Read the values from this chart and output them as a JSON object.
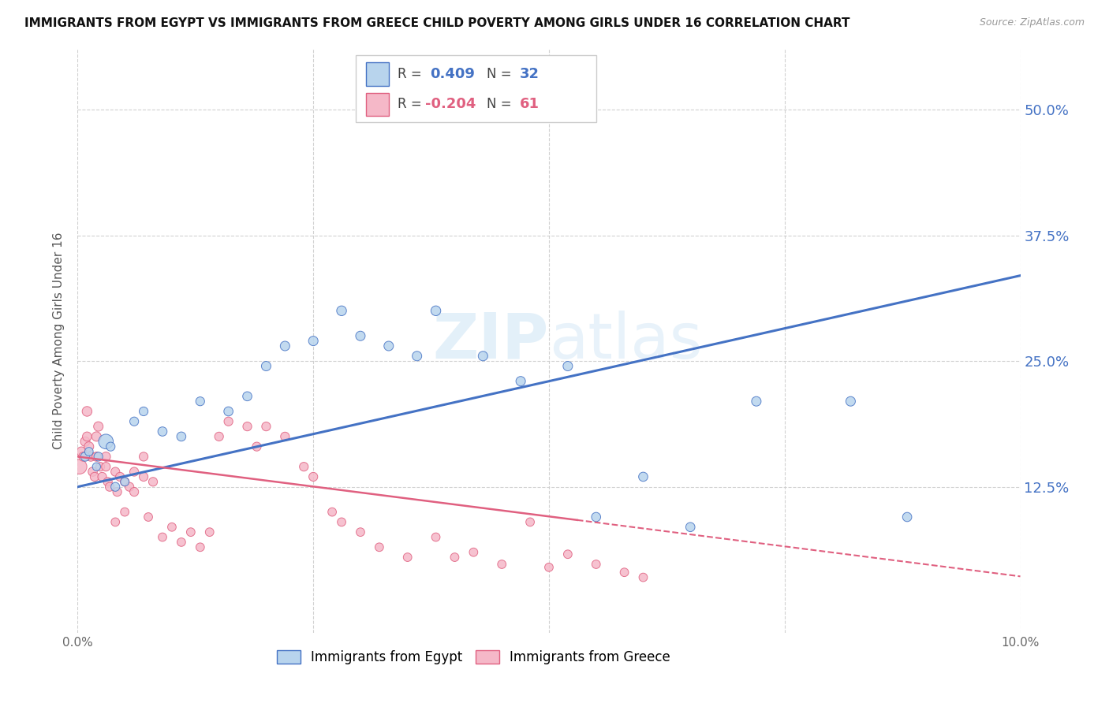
{
  "title": "IMMIGRANTS FROM EGYPT VS IMMIGRANTS FROM GREECE CHILD POVERTY AMONG GIRLS UNDER 16 CORRELATION CHART",
  "source": "Source: ZipAtlas.com",
  "ylabel": "Child Poverty Among Girls Under 16",
  "r_egypt": 0.409,
  "n_egypt": 32,
  "r_greece": -0.204,
  "n_greece": 61,
  "egypt_color": "#b8d4ed",
  "greece_color": "#f5b8c8",
  "egypt_line_color": "#4472c4",
  "greece_line_color": "#e06080",
  "background_color": "#ffffff",
  "ytick_labels": [
    "12.5%",
    "25.0%",
    "37.5%",
    "50.0%"
  ],
  "ytick_values": [
    0.125,
    0.25,
    0.375,
    0.5
  ],
  "xlim": [
    0.0,
    0.1
  ],
  "ylim": [
    -0.02,
    0.56
  ],
  "egypt_line_x0": 0.0,
  "egypt_line_y0": 0.125,
  "egypt_line_x1": 0.1,
  "egypt_line_y1": 0.335,
  "greece_line_solid_x0": 0.0,
  "greece_line_solid_y0": 0.155,
  "greece_line_solid_x1": 0.053,
  "greece_line_solid_y1": 0.092,
  "greece_line_dash_x0": 0.053,
  "greece_line_dash_y0": 0.092,
  "greece_line_dash_x1": 0.1,
  "greece_line_dash_y1": 0.036,
  "egypt_x": [
    0.0008,
    0.0012,
    0.002,
    0.0022,
    0.003,
    0.0035,
    0.004,
    0.005,
    0.006,
    0.007,
    0.009,
    0.011,
    0.013,
    0.016,
    0.018,
    0.02,
    0.022,
    0.025,
    0.028,
    0.03,
    0.033,
    0.036,
    0.038,
    0.043,
    0.047,
    0.052,
    0.055,
    0.06,
    0.065,
    0.072,
    0.082,
    0.088
  ],
  "egypt_y": [
    0.155,
    0.16,
    0.145,
    0.155,
    0.17,
    0.165,
    0.125,
    0.13,
    0.19,
    0.2,
    0.18,
    0.175,
    0.21,
    0.2,
    0.215,
    0.245,
    0.265,
    0.27,
    0.3,
    0.275,
    0.265,
    0.255,
    0.3,
    0.255,
    0.23,
    0.245,
    0.095,
    0.135,
    0.085,
    0.21,
    0.21,
    0.095
  ],
  "egypt_size": [
    70,
    60,
    55,
    65,
    180,
    65,
    65,
    60,
    65,
    65,
    70,
    70,
    65,
    70,
    70,
    75,
    75,
    75,
    80,
    75,
    75,
    75,
    80,
    75,
    75,
    75,
    70,
    70,
    70,
    75,
    75,
    70
  ],
  "greece_x": [
    0.0002,
    0.0004,
    0.0006,
    0.0008,
    0.001,
    0.001,
    0.0012,
    0.0014,
    0.0016,
    0.0018,
    0.002,
    0.002,
    0.0022,
    0.0024,
    0.0026,
    0.003,
    0.003,
    0.0032,
    0.0034,
    0.004,
    0.004,
    0.0042,
    0.0045,
    0.005,
    0.005,
    0.0055,
    0.006,
    0.006,
    0.007,
    0.007,
    0.0075,
    0.008,
    0.009,
    0.01,
    0.011,
    0.012,
    0.013,
    0.014,
    0.015,
    0.016,
    0.018,
    0.019,
    0.02,
    0.022,
    0.024,
    0.025,
    0.027,
    0.028,
    0.03,
    0.032,
    0.035,
    0.038,
    0.04,
    0.042,
    0.045,
    0.048,
    0.05,
    0.052,
    0.055,
    0.058,
    0.06
  ],
  "greece_y": [
    0.145,
    0.16,
    0.155,
    0.17,
    0.2,
    0.175,
    0.165,
    0.155,
    0.14,
    0.135,
    0.175,
    0.155,
    0.185,
    0.145,
    0.135,
    0.155,
    0.145,
    0.13,
    0.125,
    0.14,
    0.09,
    0.12,
    0.135,
    0.13,
    0.1,
    0.125,
    0.12,
    0.14,
    0.135,
    0.155,
    0.095,
    0.13,
    0.075,
    0.085,
    0.07,
    0.08,
    0.065,
    0.08,
    0.175,
    0.19,
    0.185,
    0.165,
    0.185,
    0.175,
    0.145,
    0.135,
    0.1,
    0.09,
    0.08,
    0.065,
    0.055,
    0.075,
    0.055,
    0.06,
    0.048,
    0.09,
    0.045,
    0.058,
    0.048,
    0.04,
    0.035
  ],
  "greece_size": [
    180,
    75,
    70,
    75,
    80,
    70,
    75,
    70,
    70,
    65,
    75,
    70,
    75,
    65,
    65,
    70,
    65,
    65,
    65,
    65,
    60,
    65,
    65,
    65,
    60,
    65,
    65,
    65,
    65,
    65,
    60,
    65,
    60,
    60,
    60,
    60,
    60,
    60,
    65,
    65,
    65,
    65,
    65,
    65,
    65,
    65,
    60,
    60,
    60,
    60,
    60,
    60,
    60,
    60,
    60,
    60,
    60,
    60,
    60,
    60,
    60
  ]
}
